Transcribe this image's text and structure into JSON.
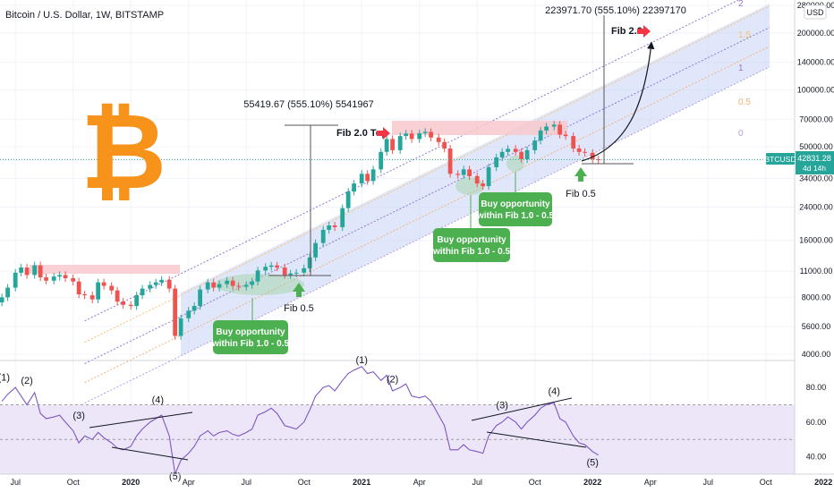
{
  "header": {
    "title": "Bitcoin / U.S. Dollar, 1W, BITSTAMP",
    "currency": "USD"
  },
  "colors": {
    "bull": "#26a69a",
    "bear": "#ef5350",
    "channel_fill": "#c8d4f5",
    "rsi_line": "#7e57c2",
    "rsi_band": "#ece6f8",
    "bitcoin_orange": "#f7931a",
    "callout_green": "#4caf50",
    "arrow_red": "#f23645",
    "resistance_pink": "#f8c8cc"
  },
  "chart_data": [
    {
      "type": "candlestick",
      "title": "Bitcoin / U.S. Dollar, 1W, BITSTAMP",
      "y_scale": "log",
      "ylim": [
        4000,
        280000
      ],
      "y_ticks": [
        4000,
        5600,
        8000,
        11000,
        16000,
        24000,
        34000,
        50000,
        70000,
        100000,
        140000,
        200000,
        280000
      ],
      "y_tick_labels": [
        "4000.00",
        "5600.00",
        "8000.00",
        "11000.00",
        "16000.00",
        "24000.00",
        "34000.00",
        "50000.00",
        "70000.00",
        "100000.00",
        "140000.00",
        "200000.00",
        "280000.00"
      ],
      "x_ticks": [
        "Jul",
        "Oct",
        "2020",
        "Apr",
        "Jul",
        "Oct",
        "2021",
        "Apr",
        "Jul",
        "Oct",
        "2022",
        "Apr",
        "Jul",
        "Oct",
        "2022"
      ],
      "x_tick_month_index": [
        6,
        9,
        12,
        15,
        18,
        21,
        24,
        27,
        30,
        33,
        36,
        39,
        42,
        45,
        48
      ],
      "x_start_month_index": 5.2,
      "months_per_pixel_basis": 48,
      "close_series": [
        [
          5.3,
          8000
        ],
        [
          5.6,
          9000
        ],
        [
          6.0,
          10800
        ],
        [
          6.3,
          11500
        ],
        [
          6.6,
          10500
        ],
        [
          7.0,
          11800
        ],
        [
          7.3,
          10200
        ],
        [
          7.6,
          9800
        ],
        [
          8.0,
          10300
        ],
        [
          8.3,
          10500
        ],
        [
          8.6,
          10100
        ],
        [
          9.0,
          9700
        ],
        [
          9.3,
          8300
        ],
        [
          9.6,
          8200
        ],
        [
          10.0,
          7800
        ],
        [
          10.3,
          9600
        ],
        [
          10.6,
          9200
        ],
        [
          11.0,
          8700
        ],
        [
          11.3,
          7600
        ],
        [
          11.6,
          7300
        ],
        [
          12.0,
          7200
        ],
        [
          12.3,
          8200
        ],
        [
          12.6,
          8900
        ],
        [
          13.0,
          9300
        ],
        [
          13.3,
          9600
        ],
        [
          13.6,
          9900
        ],
        [
          14.0,
          8900
        ],
        [
          14.3,
          5000
        ],
        [
          14.6,
          6200
        ],
        [
          15.0,
          6800
        ],
        [
          15.3,
          7200
        ],
        [
          15.6,
          8800
        ],
        [
          16.0,
          9600
        ],
        [
          16.3,
          9000
        ],
        [
          16.6,
          9400
        ],
        [
          17.0,
          9800
        ],
        [
          17.3,
          9200
        ],
        [
          17.6,
          9100
        ],
        [
          18.0,
          9300
        ],
        [
          18.3,
          9700
        ],
        [
          18.6,
          11100
        ],
        [
          19.0,
          11600
        ],
        [
          19.3,
          11800
        ],
        [
          19.6,
          11500
        ],
        [
          20.0,
          10500
        ],
        [
          20.3,
          10700
        ],
        [
          20.6,
          10800
        ],
        [
          21.0,
          11400
        ],
        [
          21.3,
          13000
        ],
        [
          21.6,
          15500
        ],
        [
          22.0,
          18200
        ],
        [
          22.3,
          19200
        ],
        [
          22.6,
          18800
        ],
        [
          23.0,
          23700
        ],
        [
          23.3,
          29000
        ],
        [
          23.6,
          32000
        ],
        [
          24.0,
          36000
        ],
        [
          24.3,
          33000
        ],
        [
          24.6,
          38000
        ],
        [
          25.0,
          47000
        ],
        [
          25.3,
          55000
        ],
        [
          25.6,
          48000
        ],
        [
          26.0,
          57000
        ],
        [
          26.3,
          58800
        ],
        [
          26.6,
          55000
        ],
        [
          27.0,
          59000
        ],
        [
          27.3,
          60000
        ],
        [
          27.6,
          56000
        ],
        [
          28.0,
          53000
        ],
        [
          28.3,
          49000
        ],
        [
          28.6,
          36000
        ],
        [
          29.0,
          35500
        ],
        [
          29.3,
          38000
        ],
        [
          29.6,
          35000
        ],
        [
          30.0,
          32000
        ],
        [
          30.3,
          31000
        ],
        [
          30.6,
          39000
        ],
        [
          31.0,
          44000
        ],
        [
          31.3,
          47000
        ],
        [
          31.6,
          48800
        ],
        [
          32.0,
          47000
        ],
        [
          32.3,
          43000
        ],
        [
          32.6,
          48000
        ],
        [
          33.0,
          54000
        ],
        [
          33.3,
          61000
        ],
        [
          33.6,
          64000
        ],
        [
          34.0,
          65500
        ],
        [
          34.3,
          58000
        ],
        [
          34.6,
          57000
        ],
        [
          35.0,
          49000
        ],
        [
          35.3,
          47000
        ],
        [
          35.6,
          46500
        ],
        [
          36.0,
          43000
        ],
        [
          36.3,
          42831
        ]
      ],
      "last_price_label": "42831.28",
      "symbol_label": "BTCUSD",
      "countdown_label": "4d 14h",
      "annotations": {
        "measure_small": "55419.67 (555.10%) 5541967",
        "measure_large": "223971.70 (555.10%) 22397170",
        "fib_2_top": "Fib 2.0 Top",
        "fib_2": "Fib 2.0",
        "fib_05_first": "Fib 0.5",
        "fib_05_second": "Fib 0.5",
        "buy_1": "Buy opportunity\nwithin Fib 1.0 - 0.5",
        "buy_2": "Buy opportunity\nwithin Fib 1.0 - 0.5",
        "buy_3": "Buy opportunity\nwithin Fib 1.0 - 0.5",
        "fib_levels": [
          "0",
          "0.5",
          "1",
          "1.5",
          "2"
        ]
      }
    },
    {
      "type": "line",
      "series_role": "rsi",
      "ylim": [
        30,
        95
      ],
      "y_ticks": [
        40,
        60,
        80
      ],
      "y_tick_labels": [
        "40.00",
        "60.00",
        "80.00"
      ],
      "band": [
        30,
        70
      ],
      "midline": 50,
      "points": [
        [
          5.3,
          72
        ],
        [
          5.6,
          76
        ],
        [
          6.0,
          80
        ],
        [
          6.3,
          75
        ],
        [
          6.6,
          70
        ],
        [
          7.0,
          77
        ],
        [
          7.3,
          65
        ],
        [
          7.6,
          62
        ],
        [
          8.0,
          63
        ],
        [
          8.3,
          64
        ],
        [
          8.6,
          60
        ],
        [
          9.0,
          55
        ],
        [
          9.3,
          48
        ],
        [
          9.6,
          52
        ],
        [
          10.0,
          50
        ],
        [
          10.3,
          54
        ],
        [
          10.6,
          51
        ],
        [
          11.0,
          48
        ],
        [
          11.3,
          45
        ],
        [
          11.6,
          44
        ],
        [
          12.0,
          46
        ],
        [
          12.3,
          52
        ],
        [
          12.6,
          56
        ],
        [
          13.0,
          60
        ],
        [
          13.3,
          62
        ],
        [
          13.6,
          64
        ],
        [
          14.0,
          52
        ],
        [
          14.3,
          30
        ],
        [
          14.6,
          38
        ],
        [
          15.0,
          42
        ],
        [
          15.3,
          46
        ],
        [
          15.6,
          52
        ],
        [
          16.0,
          55
        ],
        [
          16.3,
          52
        ],
        [
          16.6,
          54
        ],
        [
          17.0,
          55
        ],
        [
          17.3,
          53
        ],
        [
          17.6,
          52
        ],
        [
          18.0,
          54
        ],
        [
          18.3,
          56
        ],
        [
          18.6,
          64
        ],
        [
          19.0,
          66
        ],
        [
          19.3,
          68
        ],
        [
          19.6,
          65
        ],
        [
          20.0,
          58
        ],
        [
          20.3,
          57
        ],
        [
          20.6,
          56
        ],
        [
          21.0,
          60
        ],
        [
          21.3,
          67
        ],
        [
          21.6,
          75
        ],
        [
          22.0,
          80
        ],
        [
          22.3,
          81
        ],
        [
          22.6,
          78
        ],
        [
          23.0,
          84
        ],
        [
          23.3,
          88
        ],
        [
          23.6,
          90
        ],
        [
          24.0,
          92
        ],
        [
          24.3,
          88
        ],
        [
          24.6,
          89
        ],
        [
          25.0,
          84
        ],
        [
          25.3,
          87
        ],
        [
          25.6,
          78
        ],
        [
          26.0,
          80
        ],
        [
          26.3,
          82
        ],
        [
          26.6,
          75
        ],
        [
          27.0,
          74
        ],
        [
          27.3,
          75
        ],
        [
          27.6,
          72
        ],
        [
          28.0,
          64
        ],
        [
          28.3,
          58
        ],
        [
          28.6,
          44
        ],
        [
          29.0,
          44
        ],
        [
          29.3,
          47
        ],
        [
          29.6,
          44
        ],
        [
          30.0,
          43
        ],
        [
          30.3,
          42
        ],
        [
          30.6,
          52
        ],
        [
          31.0,
          58
        ],
        [
          31.3,
          60
        ],
        [
          31.6,
          63
        ],
        [
          32.0,
          60
        ],
        [
          32.3,
          56
        ],
        [
          32.6,
          60
        ],
        [
          33.0,
          64
        ],
        [
          33.3,
          68
        ],
        [
          33.6,
          70
        ],
        [
          34.0,
          71
        ],
        [
          34.3,
          62
        ],
        [
          34.6,
          60
        ],
        [
          35.0,
          52
        ],
        [
          35.3,
          48
        ],
        [
          35.6,
          47
        ],
        [
          36.0,
          43
        ],
        [
          36.3,
          41
        ]
      ],
      "wave_labels": [
        {
          "label": "(1)",
          "x": 5.4,
          "y": 84
        },
        {
          "label": "(2)",
          "x": 6.6,
          "y": 82
        },
        {
          "label": "(3)",
          "x": 9.3,
          "y": 62
        },
        {
          "label": "(4)",
          "x": 13.4,
          "y": 71
        },
        {
          "label": "(5)",
          "x": 14.3,
          "y": 27
        },
        {
          "label": "(1)",
          "x": 24.0,
          "y": 94
        },
        {
          "label": "(2)",
          "x": 25.6,
          "y": 83
        },
        {
          "label": "(3)",
          "x": 31.3,
          "y": 68
        },
        {
          "label": "(4)",
          "x": 34.0,
          "y": 76
        },
        {
          "label": "(5)",
          "x": 36.0,
          "y": 35
        }
      ]
    }
  ]
}
